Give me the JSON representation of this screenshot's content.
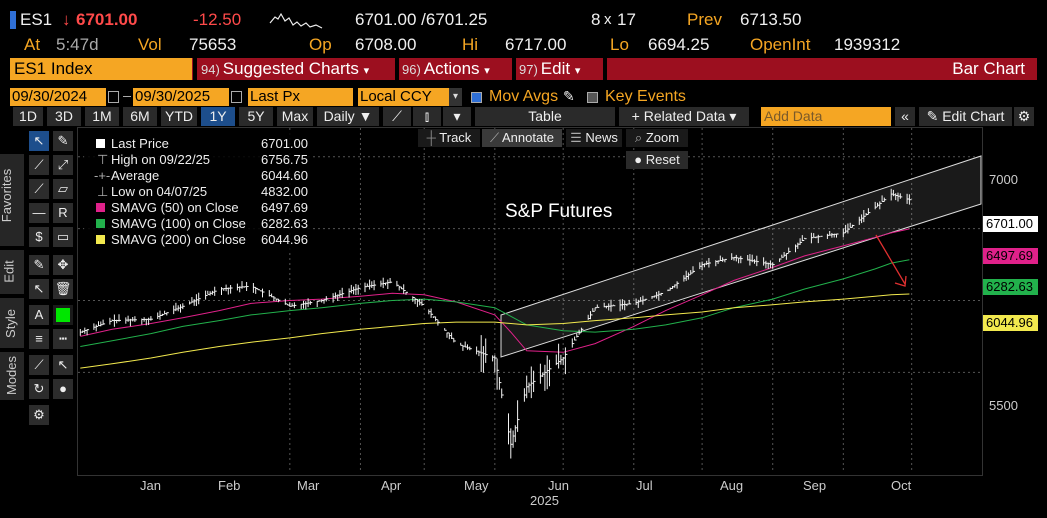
{
  "header": {
    "ticker": "ES1",
    "last": "6701.00",
    "change": "-12.50",
    "bid_ask": "6701.00 /6701.25",
    "size": "8",
    "size_x": "x",
    "size2": "17",
    "prev_label": "Prev",
    "prev": "6713.50",
    "at_label": "At",
    "at_time": "5:47d",
    "vol_label": "Vol",
    "vol": "75653",
    "op_label": "Op",
    "op": "6708.00",
    "hi_label": "Hi",
    "hi": "6717.00",
    "lo_label": "Lo",
    "lo": "6694.25",
    "oi_label": "OpenInt",
    "oi": "1939312"
  },
  "command_bar": {
    "index": "ES1 Index",
    "suggested_num": "94)",
    "suggested": "Suggested Charts",
    "actions_num": "96)",
    "actions": "Actions",
    "edit_num": "97)",
    "edit": "Edit",
    "title": "Bar Chart"
  },
  "settings": {
    "start_date": "09/30/2024",
    "end_date": "09/30/2025",
    "field": "Last Px",
    "currency": "Local CCY",
    "mov_avgs": "Mov Avgs",
    "key_events": "Key Events"
  },
  "toolbar": {
    "ranges": [
      "1D",
      "3D",
      "1M",
      "6M",
      "YTD",
      "1Y",
      "5Y",
      "Max"
    ],
    "selected_range": "1Y",
    "frequency": "Daily",
    "table": "Table",
    "related": "+ Related Data",
    "add_data_placeholder": "Add Data",
    "edit_chart": "Edit Chart"
  },
  "chart_tools": {
    "track": "Track",
    "annotate": "Annotate",
    "news": "News",
    "zoom": "Zoom",
    "reset": "Reset"
  },
  "side_tabs": [
    "Favorites",
    "Edit",
    "Style",
    "Modes"
  ],
  "legend": [
    {
      "label": "Last Price",
      "value": "6701.00",
      "color": "#ffffff"
    },
    {
      "label": "High on 09/22/25",
      "value": "6756.75",
      "color": ""
    },
    {
      "label": "Average",
      "value": "6044.60",
      "color": ""
    },
    {
      "label": "Low on 04/07/25",
      "value": "4832.00",
      "color": ""
    },
    {
      "label": "SMAVG (50)  on Close",
      "value": "6497.69",
      "color": "#e0218a"
    },
    {
      "label": "SMAVG (100)  on Close",
      "value": "6282.63",
      "color": "#22b14c"
    },
    {
      "label": "SMAVG (200)  on Close",
      "value": "6044.96",
      "color": "#f2e94e"
    }
  ],
  "annotation_text": "S&P Futures",
  "price_tags": [
    {
      "value": "6701.00",
      "color": "#ffffff"
    },
    {
      "value": "6497.69",
      "color": "#e0218a"
    },
    {
      "value": "6282.63",
      "color": "#22b14c"
    },
    {
      "value": "6044.96",
      "color": "#f2e94e"
    }
  ],
  "chart_data": {
    "type": "line",
    "ylim": [
      4800,
      7200
    ],
    "yticks": [
      "7000",
      "6500",
      "6000",
      "5500"
    ],
    "xticks": [
      "Jan",
      "Feb",
      "Mar",
      "Apr",
      "May",
      "Jun",
      "Jul",
      "Aug",
      "Sep",
      "Oct"
    ],
    "xlabel": "2025",
    "x": [
      "2024-10-01",
      "2024-10-15",
      "2024-11-01",
      "2024-11-15",
      "2024-12-01",
      "2024-12-15",
      "2025-01-01",
      "2025-01-15",
      "2025-02-01",
      "2025-02-15",
      "2025-03-01",
      "2025-03-15",
      "2025-04-01",
      "2025-04-08",
      "2025-04-15",
      "2025-05-01",
      "2025-05-15",
      "2025-06-01",
      "2025-06-15",
      "2025-07-01",
      "2025-07-15",
      "2025-08-01",
      "2025-08-15",
      "2025-09-01",
      "2025-09-15",
      "2025-09-22",
      "2025-09-30"
    ],
    "series": [
      {
        "name": "Last Price",
        "color": "#ffffff",
        "values": [
          5780,
          5860,
          5870,
          5960,
          6080,
          6100,
          5960,
          6000,
          6090,
          6130,
          5960,
          5700,
          5600,
          5000,
          5400,
          5600,
          5950,
          5980,
          6060,
          6250,
          6300,
          6250,
          6430,
          6470,
          6650,
          6740,
          6701
        ]
      },
      {
        "name": "SMAVG (50)",
        "color": "#e0218a",
        "values": [
          5750,
          5800,
          5840,
          5880,
          5930,
          5980,
          6000,
          6010,
          6030,
          6050,
          6040,
          5990,
          5900,
          5780,
          5650,
          5640,
          5700,
          5820,
          5930,
          6040,
          6140,
          6230,
          6310,
          6380,
          6440,
          6470,
          6498
        ]
      },
      {
        "name": "SMAVG (100)",
        "color": "#22b14c",
        "values": [
          5680,
          5720,
          5770,
          5820,
          5860,
          5900,
          5930,
          5950,
          5980,
          6000,
          6010,
          5990,
          5950,
          5890,
          5830,
          5790,
          5780,
          5800,
          5830,
          5880,
          5950,
          6010,
          6080,
          6150,
          6220,
          6260,
          6283
        ]
      },
      {
        "name": "SMAVG (200)",
        "color": "#f2e94e",
        "values": [
          5530,
          5560,
          5600,
          5640,
          5680,
          5710,
          5740,
          5770,
          5800,
          5820,
          5840,
          5850,
          5850,
          5840,
          5830,
          5840,
          5860,
          5880,
          5900,
          5920,
          5950,
          5970,
          5990,
          6010,
          6030,
          6040,
          6045
        ]
      }
    ]
  }
}
